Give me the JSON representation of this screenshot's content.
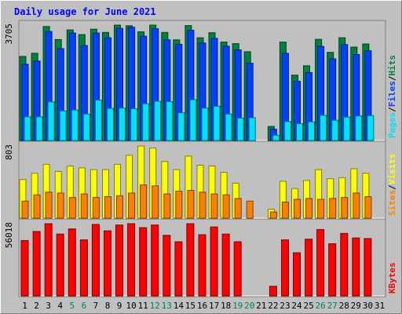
{
  "chart_data": {
    "type": "bar",
    "title": "Daily usage for June 2021",
    "days": [
      "1",
      "2",
      "3",
      "4",
      "5",
      "6",
      "7",
      "8",
      "9",
      "10",
      "11",
      "12",
      "13",
      "14",
      "15",
      "16",
      "17",
      "18",
      "19",
      "20",
      "21",
      "22",
      "23",
      "24",
      "25",
      "26",
      "27",
      "28",
      "29",
      "30",
      "31"
    ],
    "weekend_days": [
      "5",
      "6",
      "12",
      "13",
      "19",
      "20",
      "26",
      "27"
    ],
    "panels": [
      {
        "id": "hits",
        "ymax_label": "3705",
        "ymax": 3705,
        "legend": [
          {
            "label": "Pages",
            "color": "#00e0ff"
          },
          {
            "sep": "/"
          },
          {
            "label": "Files",
            "color": "#0040ff"
          },
          {
            "sep": "/"
          },
          {
            "label": "Hits",
            "color": "#008040"
          }
        ],
        "series": [
          {
            "name": "Hits",
            "color": "#008040",
            "values": [
              2700,
              2800,
              3660,
              3240,
              3550,
              3400,
              3575,
              3470,
              3705,
              3685,
              3490,
              3740,
              3470,
              3230,
              3690,
              3300,
              3460,
              3160,
              3110,
              2850,
              0,
              450,
              3160,
              2100,
              2400,
              3250,
              2830,
              3300,
              3000,
              3100,
              0
            ]
          },
          {
            "name": "Files",
            "color": "#0040ff",
            "values": [
              2450,
              2550,
              3500,
              2950,
              3450,
              3050,
              3450,
              3300,
              3600,
              3635,
              3350,
              3590,
              3230,
              3090,
              3540,
              3130,
              3280,
              3030,
              2910,
              2480,
              0,
              360,
              2800,
              1900,
              2180,
              3020,
              2620,
              3080,
              2760,
              2880,
              0
            ]
          },
          {
            "name": "Pages",
            "color": "#00e0ff",
            "values": [
              760,
              760,
              1240,
              950,
              980,
              850,
              1300,
              1030,
              1040,
              1020,
              1180,
              1260,
              1250,
              890,
              1310,
              1040,
              1100,
              850,
              720,
              730,
              0,
              170,
              610,
              540,
              600,
              810,
              650,
              750,
              790,
              800,
              0
            ]
          }
        ]
      },
      {
        "id": "visits",
        "ymax_label": "803",
        "ymax": 803,
        "legend": [
          {
            "label": "Sites",
            "color": "#ff8000"
          },
          {
            "sep": "/"
          },
          {
            "label": "Visits",
            "color": "#ffff00"
          }
        ],
        "series": [
          {
            "name": "Visits",
            "color": "#ffff00",
            "values": [
              430,
              500,
              600,
              520,
              580,
              560,
              540,
              540,
              600,
              700,
              803,
              780,
              630,
              540,
              690,
              590,
              580,
              510,
              390,
              0,
              0,
              100,
              410,
              330,
              420,
              540,
              440,
              450,
              550,
              500,
              0
            ]
          },
          {
            "name": "Sites",
            "color": "#ff8000",
            "values": [
              190,
              260,
              290,
              280,
              230,
              270,
              230,
              240,
              250,
              280,
              370,
              360,
              270,
              300,
              310,
              290,
              270,
              260,
              220,
              190,
              0,
              70,
              180,
              210,
              220,
              210,
              220,
              230,
              280,
              240,
              0
            ]
          }
        ]
      },
      {
        "id": "kbytes",
        "ymax_label": "56018",
        "ymax": 56018,
        "legend": [
          {
            "label": "KBytes",
            "color": "#ff0000"
          }
        ],
        "series": [
          {
            "name": "KBytes",
            "color": "#ff0000",
            "values": [
              43000,
              50000,
              56000,
              48000,
              52000,
              43500,
              55500,
              50500,
              55000,
              56018,
              53000,
              55000,
              47000,
              42000,
              57500,
              47500,
              53500,
              48000,
              42000,
              0,
              0,
              7500,
              43500,
              33500,
              44000,
              51500,
              40500,
              48500,
              45000,
              44500,
              0
            ]
          }
        ]
      }
    ]
  },
  "colors": {
    "background": "#c0c0c0",
    "title": "#0000ff",
    "weekday_label": "#000000",
    "weekend_label": "#00805c"
  }
}
